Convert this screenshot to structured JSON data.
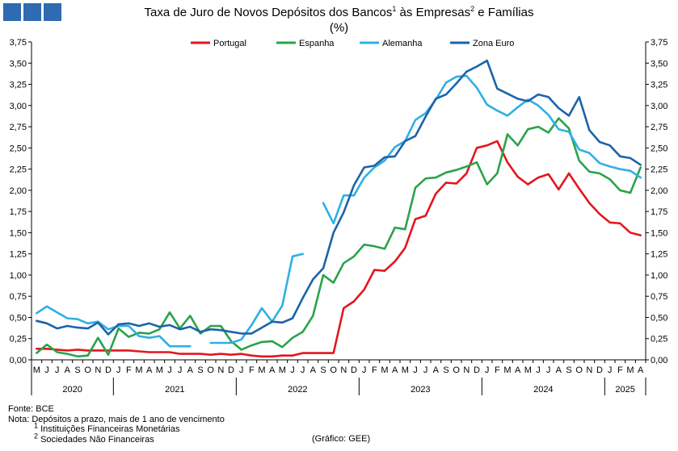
{
  "header": {
    "title_main": "Taxa de Juro de Novos Depósitos dos Bancos",
    "title_sup1": "1",
    "title_mid": " às Empresas",
    "title_sup2": "2",
    "title_end": " e Famílias",
    "subtitle": "(%)"
  },
  "colors": {
    "logo": "#2e6bb0",
    "Portugal": "#e3161e",
    "Espanha": "#2aa34a",
    "Alemanha": "#2fb0e3",
    "Zona Euro": "#1c63a8"
  },
  "chart_data": {
    "type": "line",
    "title": "Taxa de Juro de Novos Depósitos dos Bancos¹ às Empresas² e Famílias",
    "subtitle": "(%)",
    "ylim": [
      0,
      3.75
    ],
    "ytick_step": 0.25,
    "ytick_labels": [
      "0,00",
      "0,25",
      "0,50",
      "0,75",
      "1,00",
      "1,25",
      "1,50",
      "1,75",
      "2,00",
      "2,25",
      "2,50",
      "2,75",
      "3,00",
      "3,25",
      "3,50",
      "3,75"
    ],
    "legend_position": "top",
    "grid": false,
    "x": [
      "2020-05",
      "2020-06",
      "2020-07",
      "2020-08",
      "2020-09",
      "2020-10",
      "2020-11",
      "2020-12",
      "2021-01",
      "2021-02",
      "2021-03",
      "2021-04",
      "2021-05",
      "2021-06",
      "2021-07",
      "2021-08",
      "2021-09",
      "2021-10",
      "2021-11",
      "2021-12",
      "2022-01",
      "2022-02",
      "2022-03",
      "2022-04",
      "2022-05",
      "2022-06",
      "2022-07",
      "2022-08",
      "2022-09",
      "2022-10",
      "2022-11",
      "2022-12",
      "2023-01",
      "2023-02",
      "2023-03",
      "2023-04",
      "2023-05",
      "2023-06",
      "2023-07",
      "2023-08",
      "2023-09",
      "2023-10",
      "2023-11",
      "2023-12",
      "2024-01",
      "2024-02",
      "2024-03",
      "2024-04",
      "2024-05",
      "2024-06",
      "2024-07",
      "2024-08",
      "2024-09",
      "2024-10",
      "2024-11",
      "2024-12",
      "2025-01",
      "2025-02",
      "2025-03",
      "2025-04"
    ],
    "month_labels": [
      "M",
      "J",
      "J",
      "A",
      "S",
      "O",
      "N",
      "D",
      "J",
      "F",
      "M",
      "A",
      "M",
      "J",
      "J",
      "A",
      "S",
      "O",
      "N",
      "D",
      "J",
      "F",
      "M",
      "A",
      "M",
      "J",
      "J",
      "A",
      "S",
      "O",
      "N",
      "D",
      "J",
      "F",
      "M",
      "A",
      "M",
      "J",
      "J",
      "A",
      "S",
      "O",
      "N",
      "D",
      "J",
      "F",
      "M",
      "A",
      "M",
      "J",
      "J",
      "A",
      "S",
      "O",
      "N",
      "D",
      "J",
      "F",
      "M",
      "A"
    ],
    "years": [
      {
        "label": "2020",
        "start": 0,
        "end": 7
      },
      {
        "label": "2021",
        "start": 8,
        "end": 19
      },
      {
        "label": "2022",
        "start": 20,
        "end": 31
      },
      {
        "label": "2023",
        "start": 32,
        "end": 43
      },
      {
        "label": "2024",
        "start": 44,
        "end": 55
      },
      {
        "label": "2025",
        "start": 56,
        "end": 59
      }
    ],
    "series": [
      {
        "name": "Portugal",
        "values": [
          0.13,
          0.13,
          0.12,
          0.11,
          0.12,
          0.11,
          0.11,
          0.11,
          0.11,
          0.11,
          0.1,
          0.09,
          0.09,
          0.09,
          0.07,
          0.07,
          0.07,
          0.06,
          0.07,
          0.06,
          0.07,
          0.05,
          0.04,
          0.04,
          0.05,
          0.05,
          0.08,
          0.08,
          0.08,
          0.08,
          0.61,
          0.69,
          0.83,
          1.06,
          1.05,
          1.16,
          1.32,
          1.66,
          1.7,
          1.96,
          2.09,
          2.08,
          2.2,
          2.5,
          2.53,
          2.58,
          2.33,
          2.16,
          2.07,
          2.15,
          2.19,
          2.01,
          2.2,
          2.02,
          1.85,
          1.72,
          1.62,
          1.61,
          1.5,
          1.47
        ]
      },
      {
        "name": "Espanha",
        "values": [
          0.08,
          0.18,
          0.09,
          0.07,
          0.04,
          0.05,
          0.26,
          0.06,
          0.37,
          0.27,
          0.32,
          0.31,
          0.36,
          0.56,
          0.37,
          0.52,
          0.31,
          0.4,
          0.4,
          0.22,
          0.12,
          0.17,
          0.21,
          0.22,
          0.15,
          0.26,
          0.33,
          0.52,
          1.0,
          0.91,
          1.14,
          1.22,
          1.36,
          1.34,
          1.31,
          1.56,
          1.54,
          2.03,
          2.14,
          2.15,
          2.21,
          2.24,
          2.28,
          2.33,
          2.07,
          2.2,
          2.66,
          2.53,
          2.72,
          2.75,
          2.68,
          2.85,
          2.73,
          2.35,
          2.22,
          2.2,
          2.13,
          2.0,
          1.97,
          2.27
        ]
      },
      {
        "name": "Alemanha",
        "values": [
          0.55,
          0.63,
          0.56,
          0.49,
          0.48,
          0.43,
          0.45,
          0.36,
          0.4,
          0.4,
          0.28,
          0.26,
          0.28,
          0.16,
          0.16,
          0.16,
          null,
          0.2,
          0.2,
          0.2,
          0.24,
          0.41,
          0.61,
          0.45,
          0.64,
          1.22,
          1.25,
          null,
          1.85,
          1.61,
          1.94,
          1.94,
          2.15,
          2.27,
          2.35,
          2.51,
          2.58,
          2.83,
          2.91,
          3.07,
          3.27,
          3.34,
          3.35,
          3.21,
          3.01,
          2.94,
          2.88,
          2.98,
          3.07,
          3.0,
          2.89,
          2.72,
          2.69,
          2.48,
          2.44,
          2.32,
          2.28,
          2.25,
          2.23,
          2.15
        ]
      },
      {
        "name": "Zona Euro",
        "values": [
          0.46,
          0.43,
          0.37,
          0.4,
          0.38,
          0.37,
          0.44,
          0.3,
          0.42,
          0.43,
          0.4,
          0.43,
          0.39,
          0.41,
          0.36,
          0.39,
          0.33,
          0.36,
          0.35,
          0.33,
          0.31,
          0.31,
          0.38,
          0.45,
          0.44,
          0.49,
          0.73,
          0.95,
          1.08,
          1.5,
          1.74,
          2.06,
          2.27,
          2.29,
          2.39,
          2.4,
          2.58,
          2.64,
          2.87,
          3.08,
          3.13,
          3.26,
          3.4,
          3.46,
          3.53,
          3.2,
          3.14,
          3.08,
          3.05,
          3.13,
          3.1,
          2.97,
          2.88,
          3.1,
          2.71,
          2.57,
          2.53,
          2.4,
          2.38,
          2.3
        ]
      }
    ]
  },
  "footer": {
    "source": "Fonte: BCE",
    "note": "Nota: Depósitos a prazo, mais de 1 ano de vencimento",
    "footnote1_mark": "1",
    "footnote1": " Instituições Financeiras Monetárias",
    "footnote2_mark": "2",
    "footnote2": " Sociedades Não Financeiras",
    "credit": "(Gráfico: GEE)"
  }
}
